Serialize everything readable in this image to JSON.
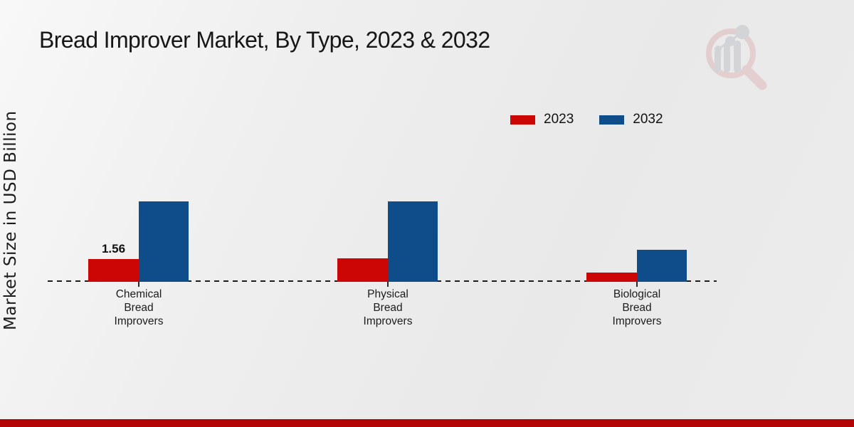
{
  "page": {
    "footer_band_color": "#b20606",
    "watermark": "magnifier-bar-chart-logo"
  },
  "chart_data": {
    "type": "bar",
    "title": "Bread Improver Market, By Type, 2023 & 2032",
    "ylabel": "Market Size in USD Billion",
    "xlabel": "",
    "categories": [
      "Chemical Bread Improvers",
      "Physical Bread Improvers",
      "Biological Bread Improvers"
    ],
    "series": [
      {
        "name": "2023",
        "color": "#cc0605",
        "values": [
          1.56,
          1.6,
          0.63
        ]
      },
      {
        "name": "2032",
        "color": "#0e4c8a",
        "values": [
          5.5,
          5.5,
          2.2
        ]
      }
    ],
    "data_labels": [
      {
        "series": "2023",
        "category": "Chemical Bread Improvers",
        "text": "1.56"
      }
    ],
    "baseline_style": "dashed",
    "grid": false,
    "legend_position": "top-right",
    "axis_line_color": "#1d1d1d"
  }
}
